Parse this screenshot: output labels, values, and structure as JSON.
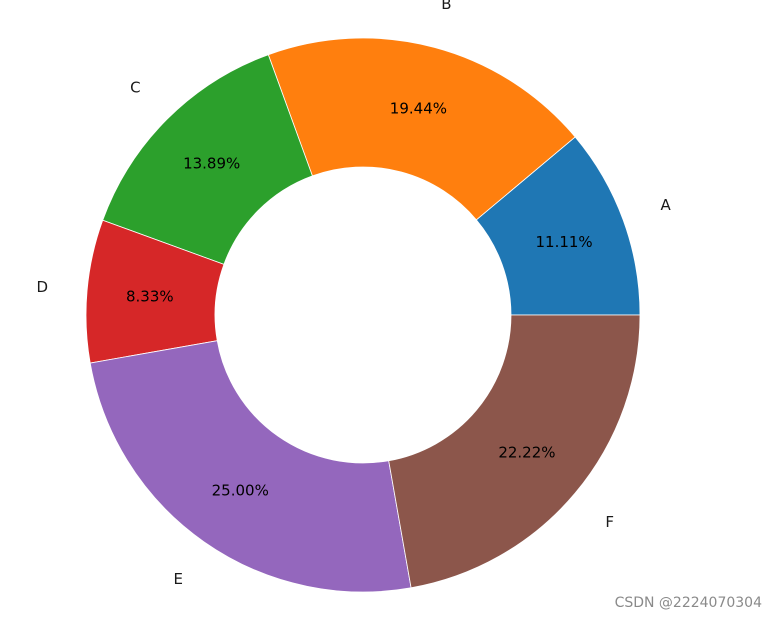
{
  "chart_data": {
    "type": "pie",
    "donut": true,
    "categories": [
      "A",
      "B",
      "C",
      "D",
      "E",
      "F"
    ],
    "values": [
      11.11,
      19.44,
      13.89,
      8.33,
      25.0,
      22.22
    ],
    "percent_labels": [
      "11.11%",
      "19.44%",
      "13.89%",
      "8.33%",
      "25.00%",
      "22.22%"
    ],
    "colors": [
      "#1f77b4",
      "#ff7f0e",
      "#2ca02c",
      "#d62728",
      "#9467bd",
      "#8c564b"
    ],
    "start_angle_deg": 0,
    "direction": "counterclockwise",
    "title": "",
    "legend": "none"
  },
  "watermark": "CSDN @2224070304"
}
